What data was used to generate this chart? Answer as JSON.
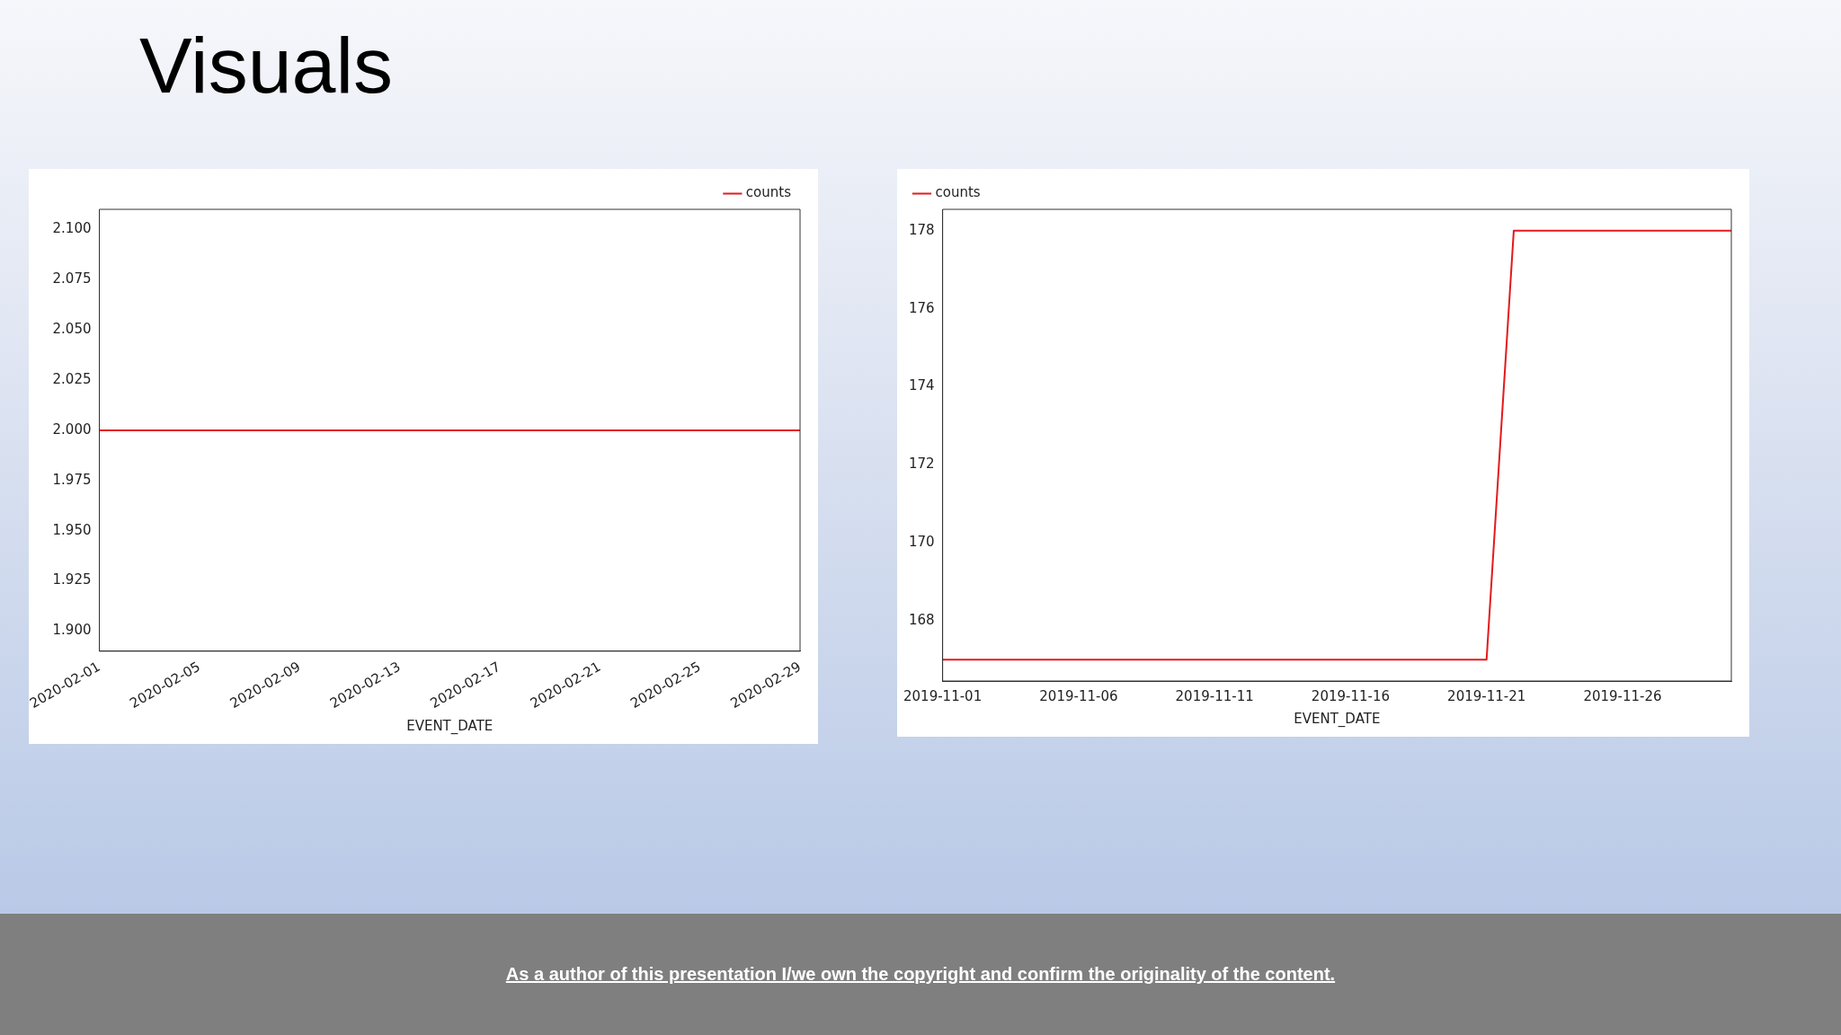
{
  "chart_data": [
    {
      "type": "line",
      "title": "Visuals",
      "xlabel": "EVENT_DATE",
      "x": [
        "2020-02-01",
        "2020-02-29"
      ],
      "series": [
        {
          "name": "counts",
          "color": "#e31a1c",
          "values": [
            2.0,
            2.0
          ]
        }
      ],
      "xlim": [
        "2020-02-01",
        "2020-02-29"
      ],
      "xticks": [
        "2020-02-01",
        "2020-02-05",
        "2020-02-09",
        "2020-02-13",
        "2020-02-17",
        "2020-02-21",
        "2020-02-25",
        "2020-02-29"
      ],
      "ylim": [
        1.89,
        2.11
      ],
      "yticks": [
        {
          "value": 1.9,
          "label": "1.900"
        },
        {
          "value": 1.925,
          "label": "1.925"
        },
        {
          "value": 1.95,
          "label": "1.950"
        },
        {
          "value": 1.975,
          "label": "1.975"
        },
        {
          "value": 2.0,
          "label": "2.000"
        },
        {
          "value": 2.025,
          "label": "2.025"
        },
        {
          "value": 2.05,
          "label": "2.050"
        },
        {
          "value": 2.075,
          "label": "2.075"
        },
        {
          "value": 2.1,
          "label": "2.100"
        }
      ],
      "grid": false,
      "legend": "top right",
      "marker": "none",
      "line_style": "solid"
    },
    {
      "type": "line",
      "xlabel": "EVENT_DATE",
      "x": [
        "2019-11-01",
        "2019-11-21",
        "2019-11-22",
        "2019-11-30"
      ],
      "series": [
        {
          "name": "counts",
          "color": "#e31a1c",
          "values": [
            167,
            167,
            178,
            178
          ]
        }
      ],
      "xlim": [
        "2019-11-01",
        "2019-11-30"
      ],
      "xticks": [
        "2019-11-01",
        "2019-11-06",
        "2019-11-11",
        "2019-11-16",
        "2019-11-21",
        "2019-11-26"
      ],
      "ylim": [
        166.45,
        178.55
      ],
      "yticks": [
        168,
        170,
        172,
        174,
        176,
        178
      ],
      "grid": false,
      "legend": "top left",
      "marker": "none",
      "line_style": "solid",
      "annotations": [
        "As a author of this presentation I/we own the copyright and confirm the originality of the content."
      ]
    }
  ]
}
